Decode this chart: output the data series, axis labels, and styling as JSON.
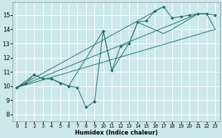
{
  "xlabel": "Humidex (Indice chaleur)",
  "bg_color": "#cce8e8",
  "grid_color": "#ffffff",
  "line_color": "#1a6e6e",
  "xlim": [
    -0.5,
    23.5
  ],
  "ylim": [
    7.5,
    15.9
  ],
  "yticks": [
    8,
    9,
    10,
    11,
    12,
    13,
    14,
    15
  ],
  "xticks": [
    0,
    1,
    2,
    3,
    4,
    5,
    6,
    7,
    8,
    9,
    10,
    11,
    12,
    13,
    14,
    15,
    16,
    17,
    18,
    19,
    20,
    21,
    22,
    23
  ],
  "main_curve_segments": [
    {
      "x": [
        0,
        1,
        2,
        3,
        4
      ],
      "y": [
        9.9,
        10.2,
        10.8,
        10.5,
        10.5
      ]
    },
    {
      "x": [
        4,
        5,
        6
      ],
      "y": [
        10.5,
        10.2,
        10.0
      ]
    },
    {
      "x": [
        6,
        7,
        8,
        9
      ],
      "y": [
        10.0,
        9.9,
        8.5,
        8.9
      ]
    },
    {
      "x": [
        9,
        10,
        11,
        12,
        13,
        14,
        15,
        16,
        17,
        18,
        19,
        20,
        21,
        22,
        23
      ],
      "y": [
        8.9,
        13.9,
        11.1,
        12.8,
        13.0,
        14.5,
        14.6,
        15.3,
        15.6,
        14.8,
        14.9,
        15.0,
        15.1,
        15.1,
        15.0
      ]
    }
  ],
  "straight_lines": [
    {
      "x": [
        0,
        23
      ],
      "y": [
        9.9,
        14.0
      ]
    },
    {
      "x": [
        0,
        21
      ],
      "y": [
        9.9,
        15.1
      ]
    },
    {
      "x": [
        0,
        17
      ],
      "y": [
        9.9,
        15.6
      ]
    }
  ],
  "envelope_curve": {
    "x": [
      0,
      2,
      3,
      4,
      6,
      10,
      11,
      13,
      14,
      17,
      18,
      21,
      22,
      23
    ],
    "y": [
      9.9,
      10.8,
      10.5,
      10.5,
      10.0,
      13.9,
      11.1,
      13.0,
      14.5,
      13.7,
      14.0,
      15.1,
      15.1,
      14.0
    ]
  }
}
